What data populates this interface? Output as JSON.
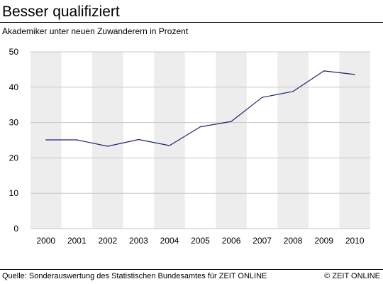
{
  "header": {
    "title": "Besser qualifiziert",
    "subtitle": "Akademiker unter neuen Zuwanderern in Prozent"
  },
  "footer": {
    "source": "Quelle: Sonderauswertung des Statistischen Bundesamtes für ZEIT ONLINE",
    "copyright": "© ZEIT ONLINE"
  },
  "colors": {
    "line": "#1c2670",
    "band": "#ededed",
    "grid": "#c8c8c8"
  },
  "chart_data": {
    "type": "line",
    "title": "Besser qualifiziert",
    "subtitle": "Akademiker unter neuen Zuwanderern in Prozent",
    "x": [
      "2000",
      "2001",
      "2002",
      "2003",
      "2004",
      "2005",
      "2006",
      "2007",
      "2008",
      "2009",
      "2010"
    ],
    "y": [
      25.1,
      25.1,
      23.3,
      25.2,
      23.5,
      28.8,
      30.3,
      37.1,
      38.8,
      44.6,
      43.6
    ],
    "ylim": [
      0,
      50
    ],
    "yticks": [
      0,
      10,
      20,
      30,
      40,
      50
    ],
    "grid": "horizontal",
    "legend": "none"
  }
}
